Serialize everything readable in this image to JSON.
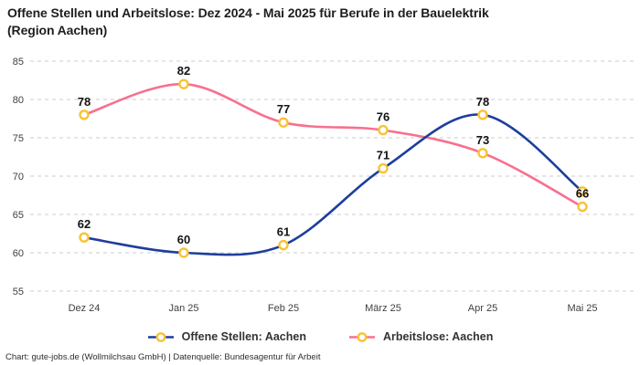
{
  "title": {
    "line1": "Offene Stellen und Arbeitslose: Dez 2024 - Mai 2025 für Berufe in der Bauelektrik",
    "line2": "(Region Aachen)"
  },
  "footer": "Chart: gute-jobs.de (Wollmilchsau GmbH) | Datenquelle: Bundesagentur für Arbeit",
  "legend": [
    {
      "label": "Offene Stellen: Aachen",
      "color": "#1e3e9d"
    },
    {
      "label": "Arbeitslose: Aachen",
      "color": "#f8708d"
    }
  ],
  "colors": {
    "blue_line": "#1e3e9d",
    "pink_line": "#f8708d",
    "marker_ring": "#f9c233",
    "gridline": "#cccccc",
    "tick_text": "#404040",
    "data_label": "#131313"
  },
  "chart_data": {
    "type": "line",
    "title": "Offene Stellen und Arbeitslose: Dez 2024 - Mai 2025 für Berufe in der Bauelektrik (Region Aachen)",
    "categories": [
      "Dez 24",
      "Jan 25",
      "Feb 25",
      "März 25",
      "Apr 25",
      "Mai 25"
    ],
    "series": [
      {
        "name": "Offene Stellen: Aachen",
        "color": "#1e3e9d",
        "values": [
          62,
          60,
          61,
          71,
          78,
          68
        ],
        "hide_last_label": true
      },
      {
        "name": "Arbeitslose: Aachen",
        "color": "#f8708d",
        "values": [
          78,
          82,
          77,
          76,
          73,
          66
        ],
        "hide_last_label": false
      }
    ],
    "marker_color": "#f9c233",
    "xlabel": "",
    "ylabel": "",
    "ylim": [
      55,
      85
    ],
    "yticks": [
      55,
      60,
      65,
      70,
      75,
      80,
      85
    ],
    "grid": "horizontal-dashed",
    "legend_position": "bottom"
  }
}
